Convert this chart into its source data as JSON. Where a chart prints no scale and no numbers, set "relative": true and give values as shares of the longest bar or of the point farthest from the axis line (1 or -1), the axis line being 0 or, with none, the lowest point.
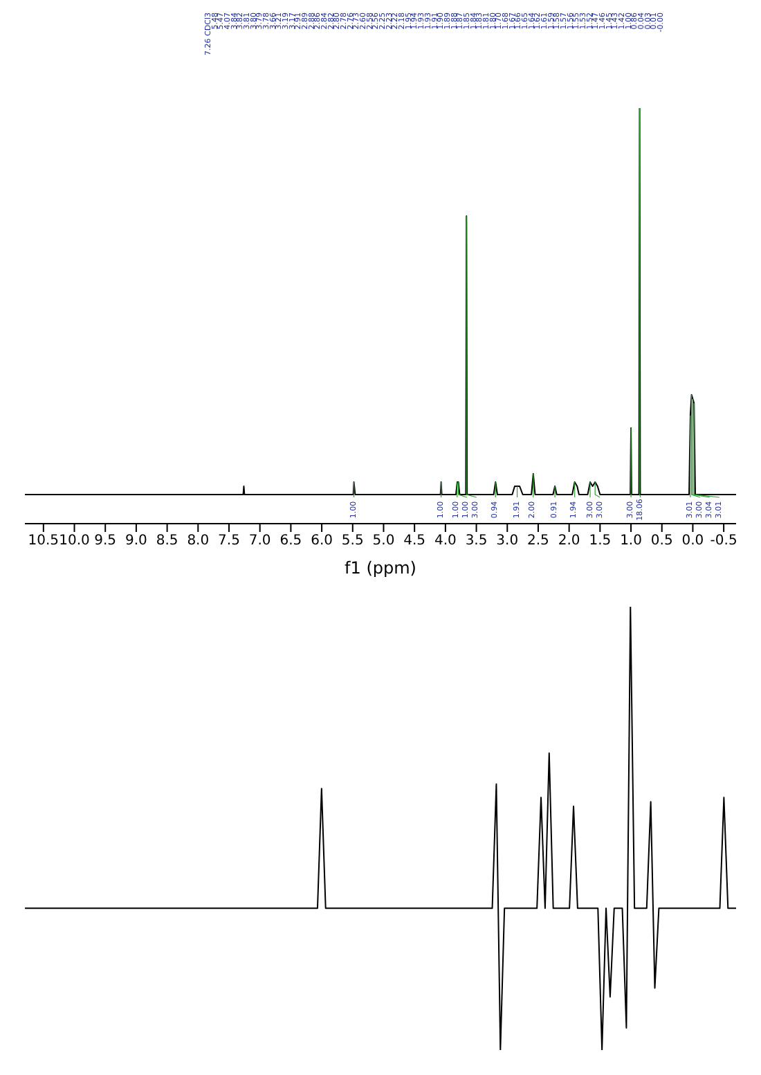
{
  "chart_data": [
    {
      "type": "line",
      "relative": true,
      "xlabel": "f1 (ppm)",
      "color": "#000000",
      "xlim": [
        10.8,
        -0.7
      ],
      "xticks": [
        10.5,
        {
          "value": 10,
          "label": "10.0"
        },
        9.5,
        {
          "value": 9,
          "label": "9.0"
        },
        8.5,
        {
          "value": 8,
          "label": "8.0"
        },
        7.5,
        {
          "value": 7,
          "label": "7.0"
        },
        6.5,
        {
          "value": 6,
          "label": "6.0"
        },
        5.5,
        {
          "value": 5,
          "label": "5.0"
        },
        4.5,
        {
          "value": 4,
          "label": "4.0"
        },
        3.5,
        {
          "value": 3,
          "label": "3.0"
        },
        2.5,
        {
          "value": 2,
          "label": "2.0"
        },
        1.5,
        {
          "value": 1,
          "label": "1.0"
        },
        0.5,
        {
          "value": 0,
          "label": "0.0"
        },
        -0.5
      ],
      "x": [
        10.8,
        7.27,
        7.26,
        7.25,
        5.49,
        5.48,
        5.46,
        4.08,
        4.07,
        4.06,
        3.83,
        3.81,
        3.79,
        3.77,
        3.67,
        3.66,
        3.65,
        3.22,
        3.19,
        3.16,
        2.92,
        2.88,
        2.84,
        2.8,
        2.75,
        2.61,
        2.58,
        2.55,
        2.26,
        2.23,
        2.2,
        1.95,
        1.91,
        1.87,
        1.84,
        1.7,
        1.66,
        1.62,
        1.58,
        1.54,
        1.5,
        1.01,
        1,
        0.99,
        0.87,
        0.86,
        0.85,
        0.06,
        0.04,
        0.02,
        0,
        -0.02,
        -0.04,
        -0.7
      ],
      "values": [
        0.07,
        0.07,
        0.09,
        0.07,
        0.07,
        0.1,
        0.07,
        0.07,
        0.1,
        0.07,
        0.07,
        0.1,
        0.1,
        0.07,
        0.07,
        0.74,
        0.07,
        0.07,
        0.1,
        0.07,
        0.07,
        0.09,
        0.09,
        0.09,
        0.07,
        0.07,
        0.12,
        0.07,
        0.07,
        0.09,
        0.07,
        0.07,
        0.1,
        0.09,
        0.07,
        0.07,
        0.1,
        0.09,
        0.1,
        0.09,
        0.07,
        0.07,
        0.23,
        0.07,
        0.07,
        1,
        0.07,
        0.07,
        0.26,
        0.31,
        0.3,
        0.29,
        0.07,
        0.07
      ],
      "annotations": [
        "7.26 CDCl3",
        "5.48",
        "5.47",
        "4.07",
        "3.84",
        "3.82",
        "3.81",
        "3.80",
        "3.79",
        "3.78",
        "3.66",
        "3.21",
        "3.19",
        "3.17",
        "2.91",
        "2.89",
        "2.88",
        "2.86",
        "2.84",
        "2.82",
        "2.80",
        "2.78",
        "2.76",
        "2.73",
        "2.60",
        "2.58",
        "2.56",
        "2.25",
        "2.23",
        "2.22",
        "2.18",
        "1.95",
        "1.94",
        "1.93",
        "1.93",
        "1.91",
        "1.90",
        "1.89",
        "1.88",
        "1.87",
        "1.85",
        "1.84",
        "1.83",
        "1.81",
        "1.80",
        "1.70",
        "1.68",
        "1.67",
        "1.66",
        "1.65",
        "1.64",
        "1.62",
        "1.61",
        "1.59",
        "1.58",
        "1.57",
        "1.56",
        "1.55",
        "1.53",
        "1.52",
        "1.47",
        "1.46",
        "1.45",
        "1.43",
        "1.42",
        "1.00",
        "0.86",
        "0.04",
        "0.03",
        "0.01",
        "-0.00",
        {
          "text": "1.00",
          "x": 5.48,
          "y": 0.1
        },
        {
          "text": "1.00",
          "x": 4.07,
          "y": 0.1
        },
        {
          "text": "1.00",
          "x": 3.81,
          "y": 0.1
        },
        {
          "text": "1.00",
          "x": 3.79,
          "y": 0.1
        },
        {
          "text": "3.00",
          "x": 3.66,
          "y": 0.74
        },
        {
          "text": "0.94",
          "x": 3.19,
          "y": 0.1
        },
        {
          "text": "1.91",
          "x": 2.84,
          "y": 0.09
        },
        {
          "text": "2.00",
          "x": 2.58,
          "y": 0.12
        },
        {
          "text": "0.91",
          "x": 2.23,
          "y": 0.09
        },
        {
          "text": "1.94",
          "x": 1.91,
          "y": 0.1
        },
        {
          "text": "3.00",
          "x": 1.66,
          "y": 0.1
        },
        {
          "text": "3.00",
          "x": 1.58,
          "y": 0.1
        },
        {
          "text": "3.00",
          "x": 1,
          "y": 0.23
        },
        {
          "text": "18.06",
          "x": 0.86,
          "y": 1
        },
        {
          "text": "3.01",
          "x": 0.04,
          "y": 0.26
        },
        {
          "text": "3.00",
          "x": 0.02,
          "y": 0.31
        },
        {
          "text": "3.04",
          "x": 0,
          "y": 0.3
        },
        {
          "text": "3.01",
          "x": -0.02,
          "y": 0.29
        }
      ]
    },
    {
      "type": "line",
      "relative": true,
      "tick_labels": false,
      "color": "#000000",
      "categories": [
        null,
        null,
        null,
        null,
        null,
        null,
        null,
        null,
        null,
        null,
        null,
        null,
        null,
        null,
        null,
        null,
        null,
        null,
        null,
        null,
        null,
        null,
        null,
        null,
        null,
        null,
        null,
        null,
        null,
        null,
        null,
        null,
        null,
        null,
        null,
        null,
        null,
        null,
        null,
        null,
        null,
        null,
        null,
        null,
        null,
        null,
        null,
        null,
        null,
        null,
        null,
        null,
        null,
        null,
        null,
        null,
        null,
        null,
        null,
        null,
        null,
        null,
        null,
        null,
        null,
        null,
        null,
        null,
        null,
        null,
        null,
        null,
        null,
        null,
        null,
        null,
        null,
        null,
        null,
        null,
        null,
        null,
        null,
        null,
        null,
        null,
        null,
        null,
        null,
        null,
        null,
        null,
        null,
        null,
        null,
        null,
        null,
        null,
        null,
        null,
        null,
        null,
        null,
        null,
        null,
        null,
        null,
        null,
        null,
        null,
        null,
        null,
        null,
        null,
        null,
        null,
        null,
        null,
        null,
        null,
        null,
        null,
        null,
        null,
        null,
        null,
        null,
        null,
        null,
        null,
        null,
        null,
        null,
        null,
        null,
        null,
        null,
        null,
        null,
        null,
        null,
        null,
        null,
        null,
        null,
        null,
        null,
        null,
        null,
        null,
        null,
        null,
        null,
        null,
        null,
        null,
        null,
        null,
        null,
        null,
        null,
        null,
        null,
        null,
        null,
        null,
        null,
        null,
        null,
        null,
        null,
        null,
        null,
        null,
        null,
        null
      ],
      "values": [
        0.32,
        0.32,
        0.32,
        0.32,
        0.32,
        0.32,
        0.32,
        0.32,
        0.32,
        0.32,
        0.32,
        0.32,
        0.32,
        0.32,
        0.32,
        0.32,
        0.32,
        0.32,
        0.32,
        0.32,
        0.32,
        0.32,
        0.32,
        0.32,
        0.32,
        0.32,
        0.32,
        0.32,
        0.32,
        0.32,
        0.32,
        0.32,
        0.32,
        0.32,
        0.32,
        0.32,
        0.32,
        0.32,
        0.32,
        0.32,
        0.32,
        0.32,
        0.32,
        0.32,
        0.32,
        0.32,
        0.32,
        0.32,
        0.32,
        0.32,
        0.32,
        0.32,
        0.32,
        0.32,
        0.32,
        0.32,
        0.32,
        0.32,
        0.32,
        0.32,
        0.32,
        0.32,
        0.32,
        0.32,
        0.32,
        0.32,
        0.32,
        0.32,
        0.32,
        0.32,
        0.32,
        0.32,
        0.32,
        0.59,
        0.32,
        0.32,
        0.32,
        0.32,
        0.32,
        0.32,
        0.32,
        0.32,
        0.32,
        0.32,
        0.32,
        0.32,
        0.32,
        0.32,
        0.32,
        0.32,
        0.32,
        0.32,
        0.32,
        0.32,
        0.32,
        0.32,
        0.32,
        0.32,
        0.32,
        0.32,
        0.32,
        0.32,
        0.32,
        0.32,
        0.32,
        0.32,
        0.32,
        0.32,
        0.32,
        0.32,
        0.32,
        0.32,
        0.32,
        0.32,
        0.32,
        0.32,
        0.6,
        0,
        0.32,
        0.32,
        0.32,
        0.32,
        0.32,
        0.32,
        0.32,
        0.32,
        0.32,
        0.57,
        0.32,
        0.67,
        0.32,
        0.32,
        0.32,
        0.32,
        0.32,
        0.55,
        0.32,
        0.32,
        0.32,
        0.32,
        0.32,
        0.32,
        0,
        0.32,
        0.12,
        0.32,
        0.32,
        0.32,
        0.05,
        1,
        0.32,
        0.32,
        0.32,
        0.32,
        0.56,
        0.14,
        0.32,
        0.32,
        0.32,
        0.32,
        0.32,
        0.32,
        0.32,
        0.32,
        0.32,
        0.32,
        0.32,
        0.32,
        0.32,
        0.32,
        0.32,
        0.32,
        0.57,
        0.32,
        0.32,
        0.32
      ]
    }
  ]
}
